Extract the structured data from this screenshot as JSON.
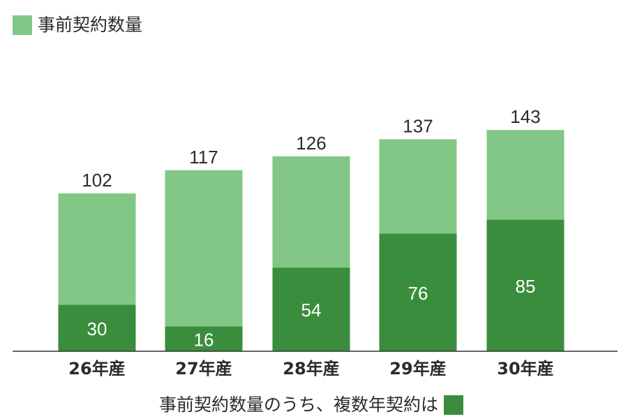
{
  "chart_data": {
    "type": "bar",
    "stacked": false,
    "overlay": true,
    "categories": [
      "26年産",
      "27年産",
      "28年産",
      "29年産",
      "30年産"
    ],
    "series": [
      {
        "name": "事前契約数量",
        "color": "#82c785",
        "values": [
          102,
          117,
          126,
          137,
          143
        ]
      },
      {
        "name": "事前契約数量のうち、複数年契約は",
        "color": "#3a8d3d",
        "values": [
          30,
          16,
          54,
          76,
          85
        ]
      }
    ],
    "ylim": [
      0,
      160
    ],
    "grid": false,
    "legend": [
      "top-left",
      "bottom-center"
    ],
    "data_labels": true
  }
}
